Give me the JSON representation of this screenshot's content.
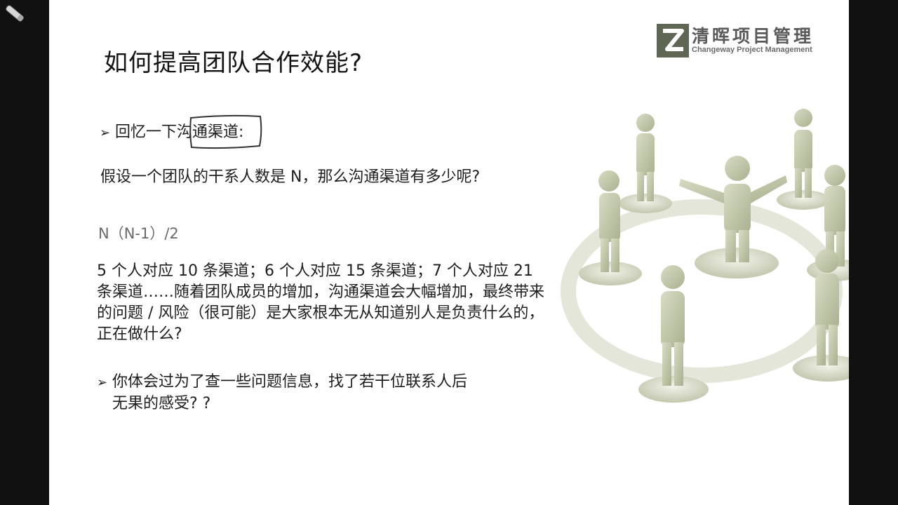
{
  "slide": {
    "title": "如何提高团队合作效能?",
    "logo": {
      "cn": "清晖项目管理",
      "en": "Changeway Project Management"
    },
    "bullet1": {
      "prefix": "回忆一下",
      "highlight": "沟通渠道",
      "suffix": ":"
    },
    "question": "假设一个团队的干系人数是 N，那么沟通渠道有多少呢?",
    "formula": "N（N-1）/2",
    "paragraph": "5 个人对应 10 条渠道；6 个人对应 15 条渠道；7 个人对应 21 条渠道……随着团队成员的增加，沟通渠道会大幅增加，最终带来的问题 / 风险（很可能）是大家根本无从知道别人是负责什么的，正在做什么?",
    "bullet2": {
      "line1": "你体会过为了查一些问题信息，找了若干位联系人后",
      "line2": "无果的感受? ?"
    }
  },
  "colors": {
    "background": "#111111",
    "slide": "#ffffff",
    "text": "#1e1e1e",
    "formula": "#6a6a6a",
    "figure": "#c9cfb2"
  }
}
